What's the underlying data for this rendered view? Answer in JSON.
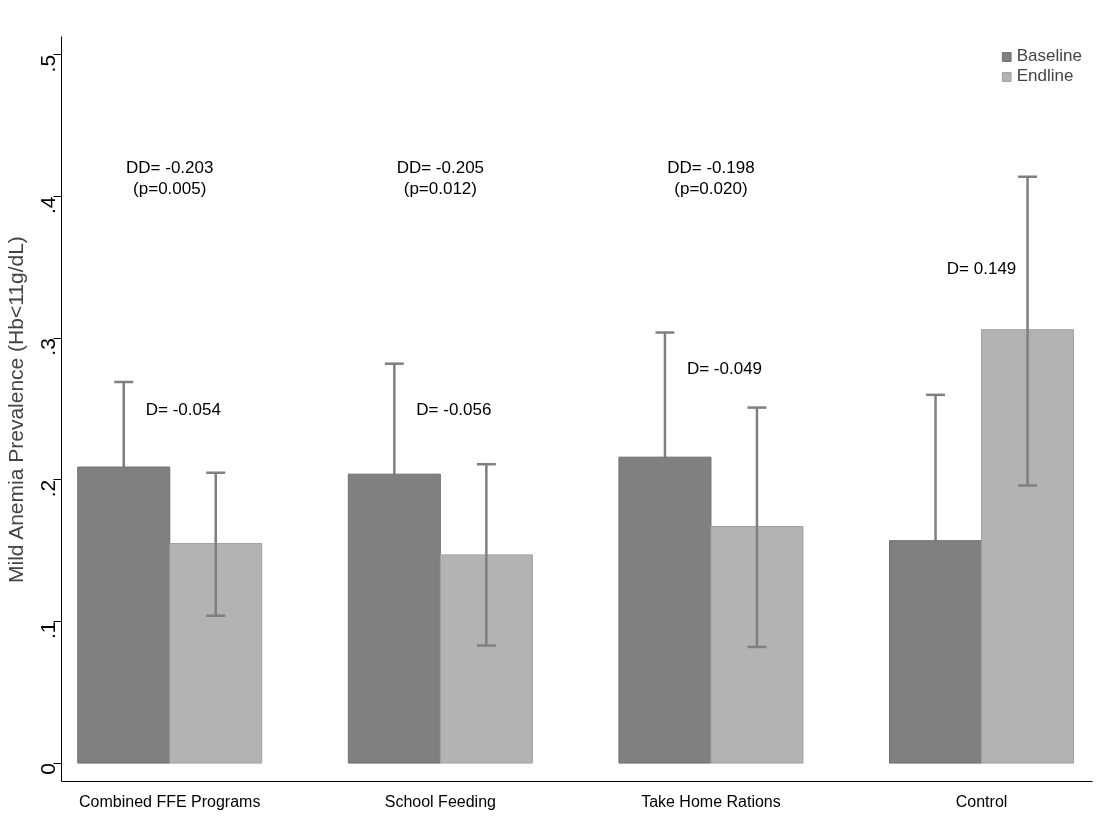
{
  "chart_data": {
    "type": "bar",
    "ylabel": "Mild Anemia Prevalence (Hb<11g/dL)",
    "categories": [
      "Combined FFE Programs",
      "School Feeding",
      "Take Home Rations",
      "Control"
    ],
    "series": [
      {
        "name": "Baseline",
        "color": "#808080",
        "values": [
          0.209,
          0.204,
          0.216,
          0.157
        ],
        "errors": [
          0.06,
          0.078,
          0.088,
          0.103
        ]
      },
      {
        "name": "Endline",
        "color": "#b3b3b3",
        "values": [
          0.155,
          0.147,
          0.167,
          0.306
        ],
        "errors": [
          [
            0.104,
            0.205
          ],
          [
            0.083,
            0.211
          ],
          [
            0.082,
            0.251
          ],
          [
            0.196,
            0.414
          ]
        ]
      }
    ],
    "ylim": [
      -0.013,
      0.513
    ],
    "yticks": [
      0,
      {
        "value": 0.1,
        "label": ".1"
      },
      {
        "value": 0.2,
        "label": ".2"
      },
      {
        "value": 0.3,
        "label": ".3"
      },
      {
        "value": 0.4,
        "label": ".4"
      },
      {
        "value": 0.5,
        "label": ".5"
      }
    ],
    "annotations": [
      "DD= -0.203\n(p=0.005)",
      "DD= -0.205\n(p=0.012)",
      "DD= -0.198\n(p=0.020)",
      "D= -0.054",
      "D= -0.056",
      "D= -0.049",
      "D= 0.149"
    ],
    "legend": "top right",
    "grid": false
  }
}
